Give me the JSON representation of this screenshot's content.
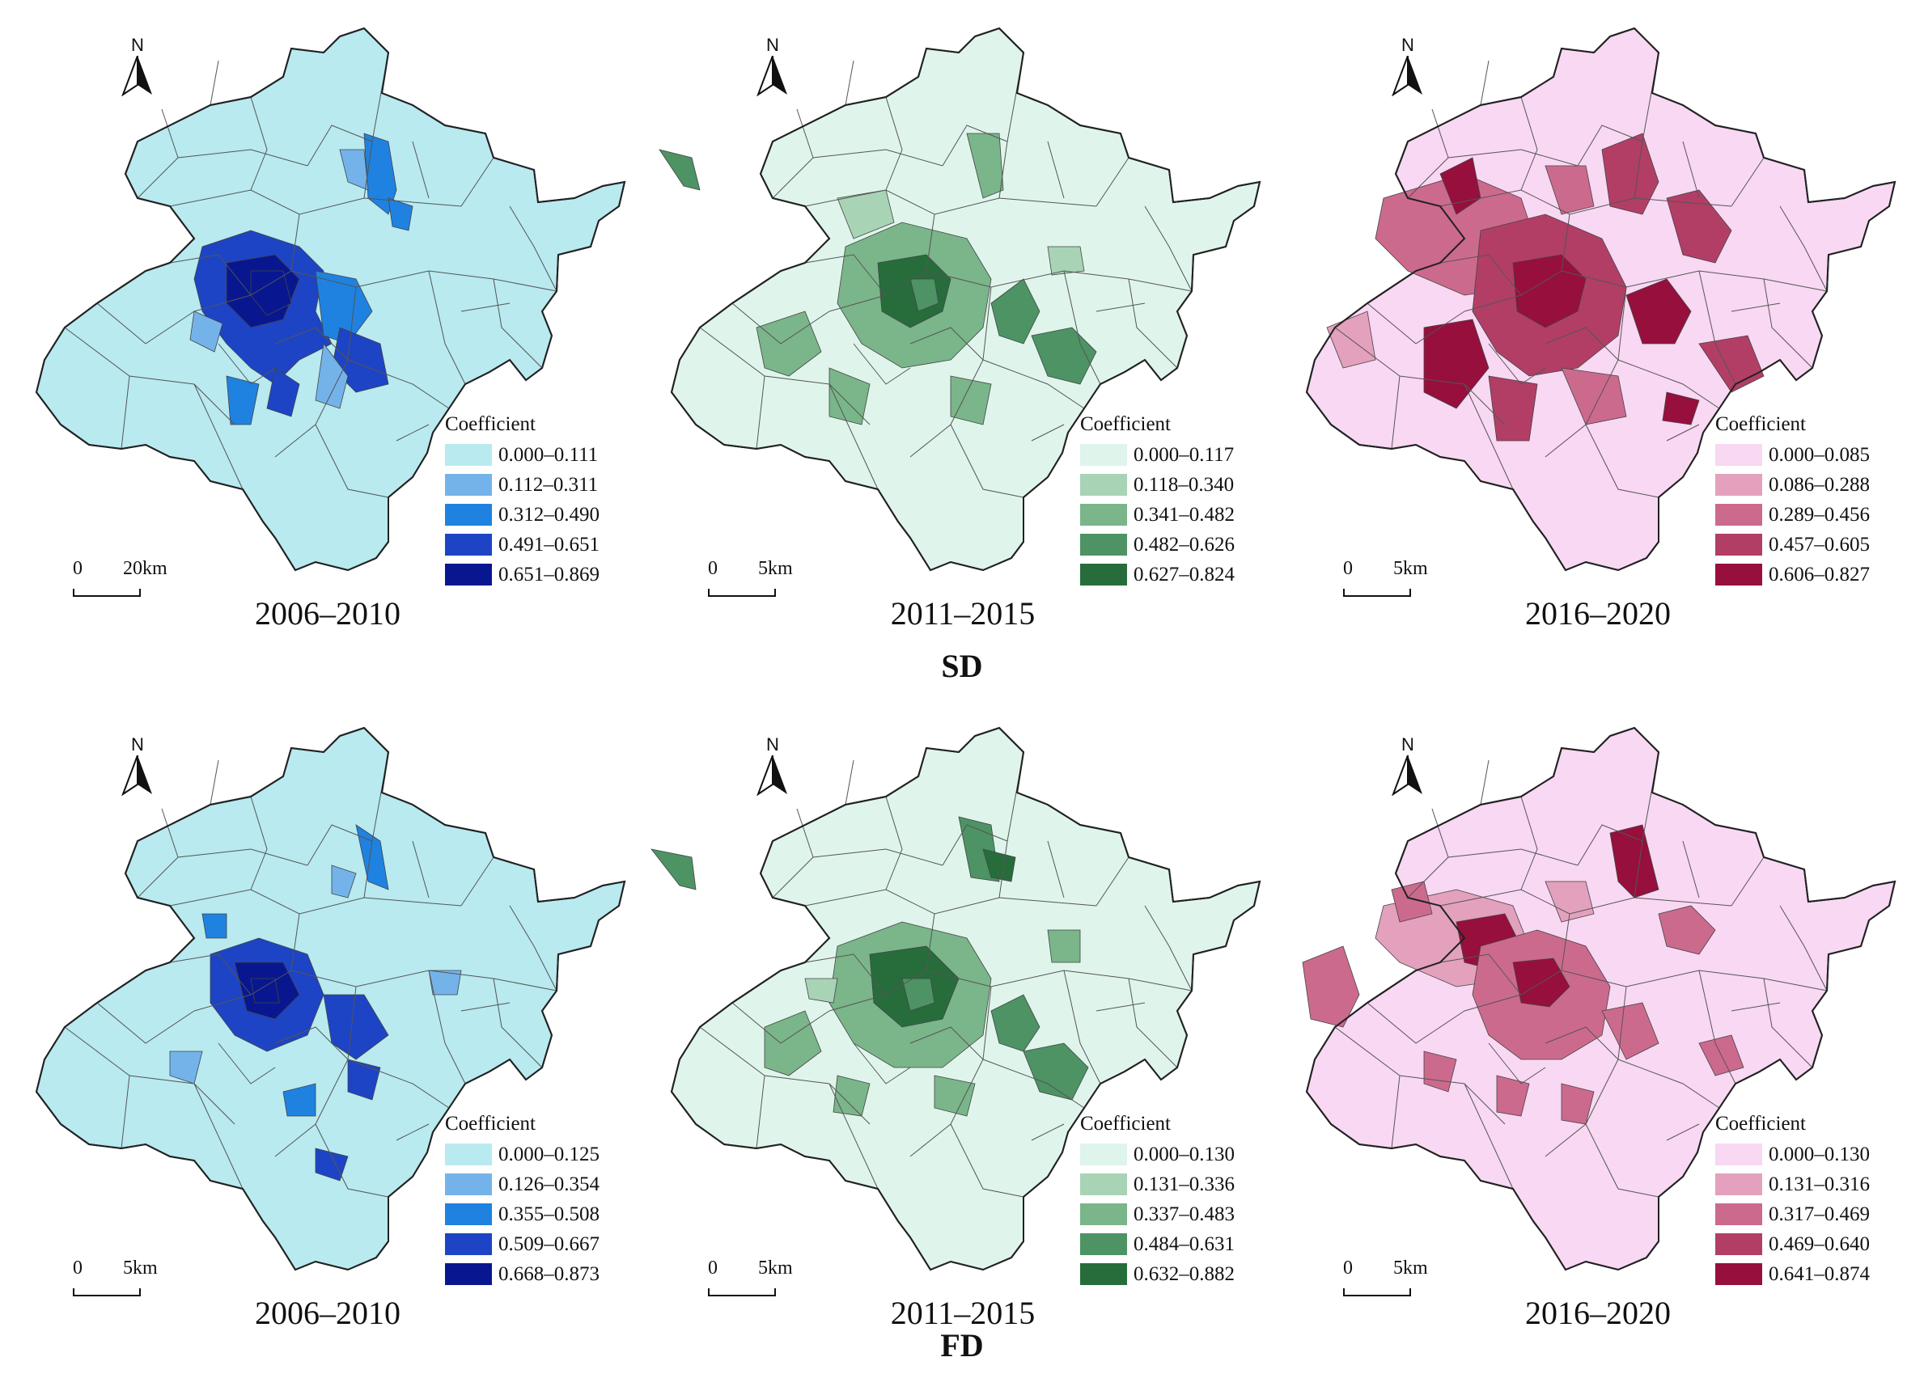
{
  "north_label": "N",
  "legend_title": "Coefficient",
  "rows": [
    {
      "label": "SD",
      "panels": [
        {
          "period": "2006–2010",
          "scale": {
            "zero": "0",
            "distance": "20km"
          },
          "legend": [
            "0.000–0.111",
            "0.112–0.311",
            "0.312–0.490",
            "0.491–0.651",
            "0.651–0.869"
          ],
          "colors": [
            "#b8eaf0",
            "#74b3ea",
            "#1f82e0",
            "#1d44c4",
            "#081790"
          ]
        },
        {
          "period": "2011–2015",
          "scale": {
            "zero": "0",
            "distance": "5km"
          },
          "legend": [
            "0.000–0.117",
            "0.118–0.340",
            "0.341–0.482",
            "0.482–0.626",
            "0.627–0.824"
          ],
          "colors": [
            "#dff5ec",
            "#a8d4b5",
            "#7bb58a",
            "#4d9364",
            "#276d3c"
          ]
        },
        {
          "period": "2016–2020",
          "scale": {
            "zero": "0",
            "distance": "5km"
          },
          "legend": [
            "0.000–0.085",
            "0.086–0.288",
            "0.289–0.456",
            "0.457–0.605",
            "0.606–0.827"
          ],
          "colors": [
            "#f8d8f3",
            "#e3a1bd",
            "#cc6a8d",
            "#b23e66",
            "#970f3c"
          ]
        }
      ]
    },
    {
      "label": "FD",
      "panels": [
        {
          "period": "2006–2010",
          "scale": {
            "zero": "0",
            "distance": "5km"
          },
          "legend": [
            "0.000–0.125",
            "0.126–0.354",
            "0.355–0.508",
            "0.509–0.667",
            "0.668–0.873"
          ],
          "colors": [
            "#b8eaf0",
            "#74b3ea",
            "#1f82e0",
            "#1d44c4",
            "#081790"
          ]
        },
        {
          "period": "2011–2015",
          "scale": {
            "zero": "0",
            "distance": "5km"
          },
          "legend": [
            "0.000–0.130",
            "0.131–0.336",
            "0.337–0.483",
            "0.484–0.631",
            "0.632–0.882"
          ],
          "colors": [
            "#dff5ec",
            "#a8d4b5",
            "#7bb58a",
            "#4d9364",
            "#276d3c"
          ]
        },
        {
          "period": "2016–2020",
          "scale": {
            "zero": "0",
            "distance": "5km"
          },
          "legend": [
            "0.000–0.130",
            "0.131–0.316",
            "0.317–0.469",
            "0.469–0.640",
            "0.641–0.874"
          ],
          "colors": [
            "#f8d8f3",
            "#e3a1bd",
            "#cc6a8d",
            "#b23e66",
            "#970f3c"
          ]
        }
      ]
    }
  ]
}
